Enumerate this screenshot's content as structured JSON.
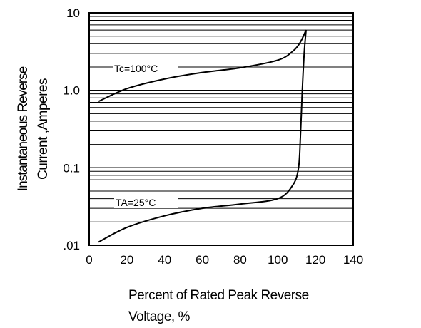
{
  "chart_data": {
    "type": "line",
    "title": "",
    "xlabel_line1": "Percent of Rated Peak Reverse",
    "xlabel_line2": "Voltage, %",
    "ylabel_line1": "Instantaneous Reverse",
    "ylabel_line2": "Current ,Amperes",
    "x_scale": "linear",
    "y_scale": "log",
    "xlim": [
      0,
      140
    ],
    "ylim": [
      0.01,
      10
    ],
    "x_ticks": [
      "0",
      "20",
      "40",
      "60",
      "80",
      "100",
      "120",
      "140"
    ],
    "y_ticks": [
      ".01",
      "0.1",
      "1.0",
      "10"
    ],
    "grid": true,
    "series": [
      {
        "name": "Tc=100°C",
        "x": [
          5,
          20,
          40,
          60,
          80,
          100,
          108,
          112,
          115
        ],
        "y": [
          0.72,
          1.05,
          1.4,
          1.7,
          1.95,
          2.45,
          3.2,
          4.2,
          6.0
        ]
      },
      {
        "name": "TA=25°C",
        "x": [
          5,
          20,
          40,
          60,
          80,
          100,
          108,
          111,
          112,
          113,
          114,
          115
        ],
        "y": [
          0.011,
          0.017,
          0.024,
          0.03,
          0.034,
          0.04,
          0.06,
          0.1,
          0.25,
          1.0,
          3.0,
          6.0
        ]
      }
    ]
  }
}
